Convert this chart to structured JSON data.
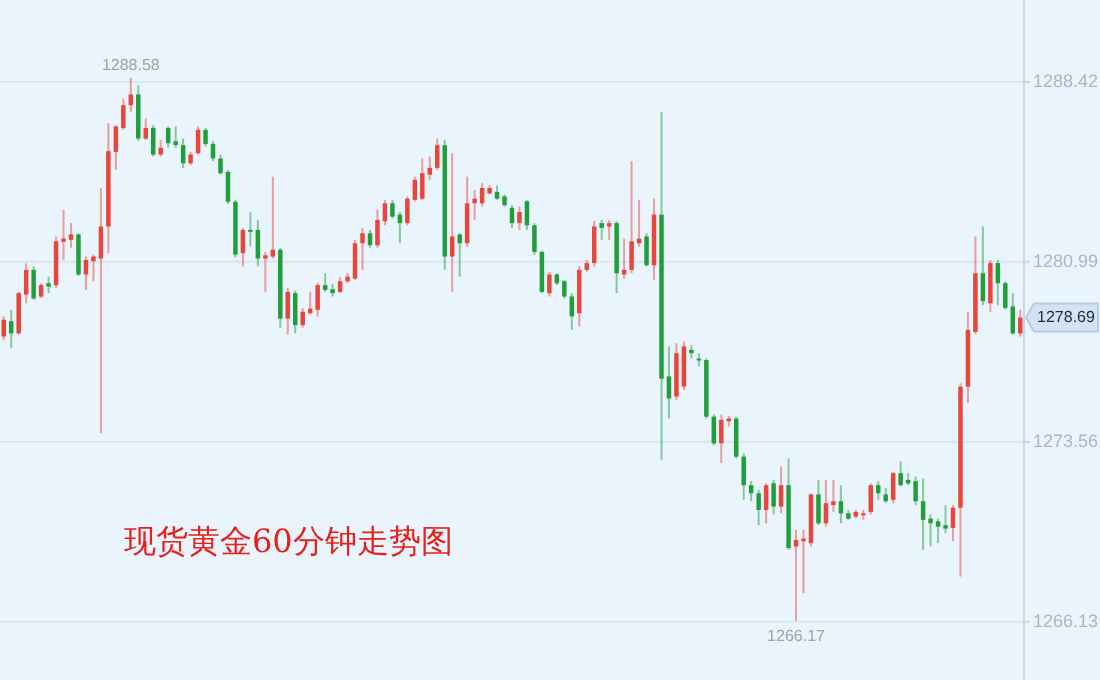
{
  "chart_data": {
    "type": "candlestick",
    "title": "现货黄金60分钟走势图",
    "categories": [
      null,
      null,
      null,
      null,
      null,
      null,
      null,
      null,
      null,
      null,
      null,
      null,
      null,
      null,
      null,
      null,
      null,
      null,
      null,
      null,
      null,
      null,
      null,
      null,
      null,
      null,
      null,
      null,
      null,
      null,
      null,
      null,
      null,
      null,
      null,
      null,
      null,
      null,
      null,
      null,
      null,
      null,
      null,
      null,
      null,
      null,
      null,
      null,
      null,
      null,
      null,
      null,
      null,
      null,
      null,
      null,
      null,
      null,
      null,
      null,
      null,
      null,
      null,
      null,
      null,
      null,
      null,
      null,
      null,
      null,
      null,
      null,
      null,
      null,
      null,
      null,
      null,
      null,
      null,
      null,
      null,
      null,
      null,
      null,
      null,
      null,
      null,
      null,
      null,
      null,
      null,
      null,
      null,
      null,
      null,
      null,
      null,
      null,
      null,
      null,
      null,
      null,
      null,
      null,
      null,
      null,
      null,
      null,
      null,
      null,
      null,
      null,
      null,
      null,
      null,
      null,
      null,
      null,
      null,
      null,
      null,
      null,
      null,
      null,
      null,
      null,
      null,
      null,
      null,
      null,
      null,
      null,
      null,
      null,
      null,
      null,
      null
    ],
    "ohlc": [
      [
        1277.91,
        1278.74,
        1277.77,
        1278.6
      ],
      [
        1278.54,
        1279.01,
        1277.44,
        1278.04
      ],
      [
        1278.04,
        1279.75,
        1277.99,
        1279.7
      ],
      [
        1279.64,
        1280.93,
        1279.28,
        1280.66
      ],
      [
        1280.66,
        1280.8,
        1279.42,
        1279.48
      ],
      [
        1279.56,
        1280.11,
        1279.5,
        1280.03
      ],
      [
        1280.11,
        1280.38,
        1279.7,
        1279.97
      ],
      [
        1280.03,
        1282.04,
        1279.92,
        1281.84
      ],
      [
        1281.82,
        1283.14,
        1281.07,
        1281.95
      ],
      [
        1281.9,
        1282.59,
        1281.57,
        1282.12
      ],
      [
        1282.12,
        1282.17,
        1280.41,
        1280.47
      ],
      [
        1280.47,
        1281.21,
        1279.83,
        1281.07
      ],
      [
        1281.02,
        1281.29,
        1280.19,
        1281.21
      ],
      [
        1281.13,
        1284.04,
        1273.92,
        1282.45
      ],
      [
        1282.45,
        1286.71,
        1281.35,
        1285.56
      ],
      [
        1285.53,
        1286.63,
        1284.79,
        1286.58
      ],
      [
        1286.52,
        1287.73,
        1286.44,
        1287.46
      ],
      [
        1287.46,
        1288.58,
        1287.18,
        1287.9
      ],
      [
        1287.9,
        1288.28,
        1285.97,
        1286.08
      ],
      [
        1286.08,
        1286.91,
        1286.03,
        1286.52
      ],
      [
        1286.52,
        1286.63,
        1285.34,
        1285.42
      ],
      [
        1285.42,
        1286.03,
        1285.34,
        1285.7
      ],
      [
        1286.52,
        1286.58,
        1285.7,
        1285.89
      ],
      [
        1285.97,
        1286.58,
        1285.7,
        1285.81
      ],
      [
        1285.81,
        1286.08,
        1284.87,
        1285.06
      ],
      [
        1285.06,
        1285.53,
        1284.98,
        1285.42
      ],
      [
        1285.48,
        1286.58,
        1285.42,
        1286.44
      ],
      [
        1286.44,
        1286.52,
        1285.75,
        1285.86
      ],
      [
        1285.86,
        1285.97,
        1285.15,
        1285.26
      ],
      [
        1285.26,
        1285.42,
        1284.59,
        1284.65
      ],
      [
        1284.7,
        1284.79,
        1283.38,
        1283.47
      ],
      [
        1283.47,
        1283.55,
        1281.18,
        1281.29
      ],
      [
        1281.35,
        1282.39,
        1280.8,
        1282.31
      ],
      [
        1282.31,
        1283.05,
        1281.62,
        1282.23
      ],
      [
        1282.31,
        1282.72,
        1280.8,
        1281.13
      ],
      [
        1281.13,
        1281.4,
        1279.75,
        1281.26
      ],
      [
        1281.21,
        1284.51,
        1281.13,
        1281.49
      ],
      [
        1281.49,
        1281.57,
        1278.27,
        1278.65
      ],
      [
        1278.65,
        1279.92,
        1277.99,
        1279.75
      ],
      [
        1279.7,
        1279.81,
        1278.04,
        1278.38
      ],
      [
        1278.38,
        1279.09,
        1278.27,
        1278.93
      ],
      [
        1278.87,
        1279.75,
        1278.82,
        1279.06
      ],
      [
        1279.01,
        1280.11,
        1278.74,
        1280.03
      ],
      [
        1280.03,
        1280.52,
        1279.75,
        1279.83
      ],
      [
        1279.86,
        1280.08,
        1279.56,
        1279.7
      ],
      [
        1279.75,
        1280.36,
        1279.7,
        1280.19
      ],
      [
        1280.19,
        1280.52,
        1280.11,
        1280.38
      ],
      [
        1280.3,
        1281.9,
        1280.25,
        1281.76
      ],
      [
        1281.76,
        1282.39,
        1280.66,
        1282.17
      ],
      [
        1282.17,
        1282.31,
        1281.57,
        1281.68
      ],
      [
        1281.68,
        1283.14,
        1281.57,
        1282.72
      ],
      [
        1282.67,
        1283.55,
        1282.5,
        1283.41
      ],
      [
        1283.41,
        1283.55,
        1282.78,
        1282.86
      ],
      [
        1282.94,
        1283.05,
        1281.76,
        1282.59
      ],
      [
        1282.59,
        1283.69,
        1282.5,
        1283.6
      ],
      [
        1283.55,
        1284.51,
        1283.49,
        1284.38
      ],
      [
        1283.6,
        1285.26,
        1283.55,
        1284.65
      ],
      [
        1284.59,
        1285.34,
        1284.38,
        1284.87
      ],
      [
        1284.87,
        1286.08,
        1284.79,
        1285.81
      ],
      [
        1285.81,
        1286.03,
        1280.66,
        1281.21
      ],
      [
        1281.21,
        1285.48,
        1279.75,
        1282.04
      ],
      [
        1282.12,
        1282.17,
        1280.38,
        1281.76
      ],
      [
        1281.76,
        1284.51,
        1281.62,
        1283.41
      ],
      [
        1283.41,
        1283.96,
        1282.72,
        1283.6
      ],
      [
        1283.41,
        1284.24,
        1283.27,
        1284.04
      ],
      [
        1283.82,
        1284.15,
        1283.77,
        1284.04
      ],
      [
        1283.88,
        1284.15,
        1283.55,
        1283.6
      ],
      [
        1283.69,
        1283.77,
        1283.27,
        1283.33
      ],
      [
        1283.22,
        1283.33,
        1282.39,
        1282.59
      ],
      [
        1282.59,
        1283.27,
        1282.31,
        1283.05
      ],
      [
        1283.49,
        1283.55,
        1282.31,
        1282.5
      ],
      [
        1282.5,
        1282.59,
        1281.29,
        1281.4
      ],
      [
        1281.4,
        1281.46,
        1279.7,
        1279.75
      ],
      [
        1279.7,
        1280.58,
        1279.56,
        1280.47
      ],
      [
        1280.47,
        1280.52,
        1280.03,
        1280.11
      ],
      [
        1280.19,
        1280.25,
        1279.48,
        1279.56
      ],
      [
        1279.56,
        1279.7,
        1278.18,
        1278.74
      ],
      [
        1278.87,
        1280.8,
        1278.32,
        1280.66
      ],
      [
        1280.66,
        1281.07,
        1280.58,
        1280.94
      ],
      [
        1280.94,
        1282.67,
        1280.8,
        1282.45
      ],
      [
        1282.59,
        1282.72,
        1281.9,
        1282.39
      ],
      [
        1282.45,
        1282.72,
        1281.9,
        1282.59
      ],
      [
        1282.59,
        1282.67,
        1279.7,
        1280.52
      ],
      [
        1280.47,
        1281.95,
        1280.3,
        1280.66
      ],
      [
        1280.66,
        1285.15,
        1280.52,
        1281.84
      ],
      [
        1281.76,
        1283.55,
        1281.62,
        1281.95
      ],
      [
        1282.04,
        1282.17,
        1280.8,
        1280.85
      ],
      [
        1280.85,
        1283.6,
        1280.25,
        1282.94
      ],
      [
        1282.94,
        1287.18,
        1272.82,
        1276.17
      ],
      [
        1276.26,
        1277.5,
        1274.52,
        1275.35
      ],
      [
        1275.43,
        1277.63,
        1275.29,
        1277.22
      ],
      [
        1275.84,
        1277.71,
        1275.7,
        1277.5
      ],
      [
        1277.36,
        1277.55,
        1277.0,
        1277.22
      ],
      [
        1277.0,
        1277.22,
        1276.67,
        1276.94
      ],
      [
        1276.94,
        1277.0,
        1274.52,
        1274.6
      ],
      [
        1274.6,
        1274.69,
        1273.42,
        1273.5
      ],
      [
        1273.5,
        1274.69,
        1272.68,
        1274.47
      ],
      [
        1274.41,
        1274.63,
        1274.19,
        1274.52
      ],
      [
        1274.52,
        1274.6,
        1272.87,
        1272.95
      ],
      [
        1272.95,
        1273.09,
        1271.17,
        1271.77
      ],
      [
        1271.77,
        1271.94,
        1271.11,
        1271.44
      ],
      [
        1271.44,
        1271.58,
        1270.12,
        1270.75
      ],
      [
        1270.75,
        1271.85,
        1270.2,
        1271.77
      ],
      [
        1271.85,
        1271.99,
        1270.56,
        1270.89
      ],
      [
        1270.89,
        1272.54,
        1270.61,
        1271.77
      ],
      [
        1271.77,
        1272.87,
        1269.1,
        1269.18
      ],
      [
        1269.24,
        1269.93,
        1266.17,
        1269.51
      ],
      [
        1269.46,
        1269.93,
        1267.31,
        1269.57
      ],
      [
        1269.38,
        1271.44,
        1269.24,
        1271.39
      ],
      [
        1271.39,
        1271.99,
        1270.12,
        1270.2
      ],
      [
        1270.2,
        1271.99,
        1270.06,
        1271.03
      ],
      [
        1270.95,
        1271.99,
        1270.67,
        1271.11
      ],
      [
        1271.11,
        1271.77,
        1270.2,
        1270.61
      ],
      [
        1270.61,
        1270.75,
        1270.34,
        1270.39
      ],
      [
        1270.48,
        1270.75,
        1270.39,
        1270.67
      ],
      [
        1270.56,
        1270.75,
        1270.34,
        1270.61
      ],
      [
        1270.67,
        1271.85,
        1270.56,
        1271.77
      ],
      [
        1271.77,
        1271.94,
        1271.17,
        1271.44
      ],
      [
        1271.39,
        1271.66,
        1271.03,
        1271.11
      ],
      [
        1271.17,
        1272.32,
        1271.03,
        1272.27
      ],
      [
        1272.27,
        1272.76,
        1271.72,
        1271.77
      ],
      [
        1271.99,
        1272.27,
        1271.77,
        1271.85
      ],
      [
        1271.94,
        1272.13,
        1270.95,
        1271.11
      ],
      [
        1271.11,
        1272.05,
        1269.1,
        1270.34
      ],
      [
        1270.39,
        1270.56,
        1269.24,
        1270.2
      ],
      [
        1270.28,
        1270.39,
        1269.38,
        1270.06
      ],
      [
        1270.12,
        1270.95,
        1269.79,
        1269.98
      ],
      [
        1270.01,
        1270.95,
        1269.46,
        1270.84
      ],
      [
        1270.84,
        1275.98,
        1268.0,
        1275.84
      ],
      [
        1275.84,
        1278.93,
        1275.16,
        1278.18
      ],
      [
        1278.1,
        1282.04,
        1277.99,
        1280.52
      ],
      [
        1280.52,
        1282.45,
        1279.2,
        1279.37
      ],
      [
        1279.28,
        1281.07,
        1278.93,
        1280.94
      ],
      [
        1280.94,
        1281.07,
        1279.2,
        1280.11
      ],
      [
        1280.11,
        1280.19,
        1279.01,
        1279.09
      ],
      [
        1279.15,
        1279.7,
        1277.99,
        1278.04
      ],
      [
        1278.04,
        1279.01,
        1277.91,
        1278.69
      ]
    ],
    "colors": [
      "#e8453c",
      "#1f9e3a",
      "#e8453c",
      "#e8453c",
      "#1f9e3a",
      "#e8453c",
      "#1f9e3a",
      "#e8453c",
      "#e8453c",
      "#e8453c",
      "#1f9e3a",
      "#e8453c",
      "#e8453c",
      "#e8453c",
      "#e8453c",
      "#e8453c",
      "#e8453c",
      "#e8453c",
      "#1f9e3a",
      "#e8453c",
      "#1f9e3a",
      "#e8453c",
      "#1f9e3a",
      "#1f9e3a",
      "#1f9e3a",
      "#e8453c",
      "#e8453c",
      "#1f9e3a",
      "#1f9e3a",
      "#1f9e3a",
      "#1f9e3a",
      "#1f9e3a",
      "#e8453c",
      "#1f9e3a",
      "#1f9e3a",
      "#e8453c",
      "#e8453c",
      "#1f9e3a",
      "#e8453c",
      "#1f9e3a",
      "#e8453c",
      "#e8453c",
      "#e8453c",
      "#1f9e3a",
      "#1f9e3a",
      "#e8453c",
      "#e8453c",
      "#e8453c",
      "#e8453c",
      "#1f9e3a",
      "#e8453c",
      "#e8453c",
      "#1f9e3a",
      "#1f9e3a",
      "#e8453c",
      "#e8453c",
      "#e8453c",
      "#e8453c",
      "#e8453c",
      "#1f9e3a",
      "#e8453c",
      "#1f9e3a",
      "#e8453c",
      "#e8453c",
      "#e8453c",
      "#e8453c",
      "#1f9e3a",
      "#1f9e3a",
      "#1f9e3a",
      "#e8453c",
      "#1f9e3a",
      "#1f9e3a",
      "#1f9e3a",
      "#e8453c",
      "#1f9e3a",
      "#1f9e3a",
      "#1f9e3a",
      "#e8453c",
      "#e8453c",
      "#e8453c",
      "#1f9e3a",
      "#e8453c",
      "#1f9e3a",
      "#e8453c",
      "#e8453c",
      "#e8453c",
      "#1f9e3a",
      "#e8453c",
      "#1f9e3a",
      "#1f9e3a",
      "#e8453c",
      "#e8453c",
      "#1f9e3a",
      "#1f9e3a",
      "#1f9e3a",
      "#1f9e3a",
      "#e8453c",
      "#e8453c",
      "#1f9e3a",
      "#1f9e3a",
      "#1f9e3a",
      "#1f9e3a",
      "#e8453c",
      "#1f9e3a",
      "#e8453c",
      "#1f9e3a",
      "#e8453c",
      "#e8453c",
      "#e8453c",
      "#1f9e3a",
      "#e8453c",
      "#e8453c",
      "#1f9e3a",
      "#1f9e3a",
      "#e8453c",
      "#e8453c",
      "#e8453c",
      "#1f9e3a",
      "#1f9e3a",
      "#e8453c",
      "#1f9e3a",
      "#1f9e3a",
      "#1f9e3a",
      "#1f9e3a",
      "#1f9e3a",
      "#1f9e3a",
      "#1f9e3a",
      "#e8453c",
      "#e8453c",
      "#e8453c",
      "#e8453c",
      "#1f9e3a",
      "#e8453c",
      "#1f9e3a",
      "#1f9e3a",
      "#1f9e3a",
      "#e8453c"
    ],
    "ylim": [
      1263.73,
      1291.8
    ],
    "yticks": [
      1266.13,
      1273.56,
      1280.99,
      1288.42
    ],
    "grid": "y",
    "tick_labels": "y",
    "annotations": [
      "1288.58",
      "1266.17",
      "1278.69"
    ]
  }
}
